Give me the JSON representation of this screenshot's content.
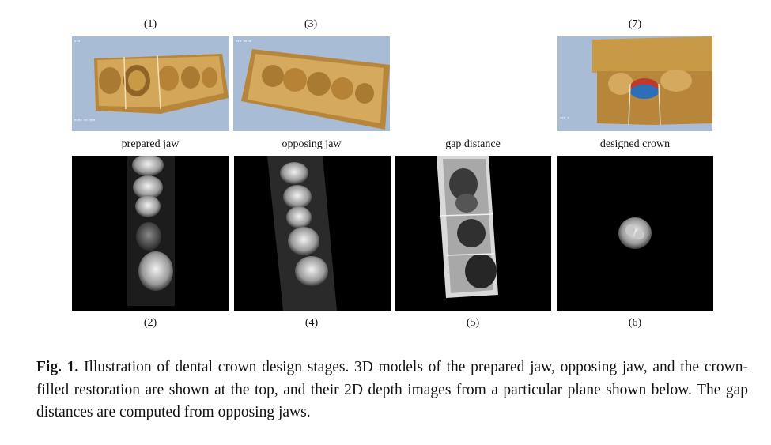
{
  "figure": {
    "top_row": [
      {
        "number": "(1)",
        "label": "prepared jaw"
      },
      {
        "number": "(3)",
        "label": "opposing jaw"
      },
      {
        "number": "",
        "label": "gap distance"
      },
      {
        "number": "(7)",
        "label": "designed crown"
      }
    ],
    "bottom_numbers": [
      "(2)",
      "(4)",
      "(5)",
      "(6)"
    ]
  },
  "caption": {
    "prefix": "Fig. 1.",
    "text": "Illustration of dental crown design stages. 3D models of the prepared jaw, opposing jaw, and the crown-filled restoration are shown at the top, and their 2D depth images from a particular plane shown below. The gap distances are computed from opposing jaws."
  },
  "colors": {
    "viewport_bg": "#a9bcd6",
    "model_gold": "#c99a45",
    "crown_red": "#c0392b",
    "crown_blue": "#2c6fb8"
  }
}
